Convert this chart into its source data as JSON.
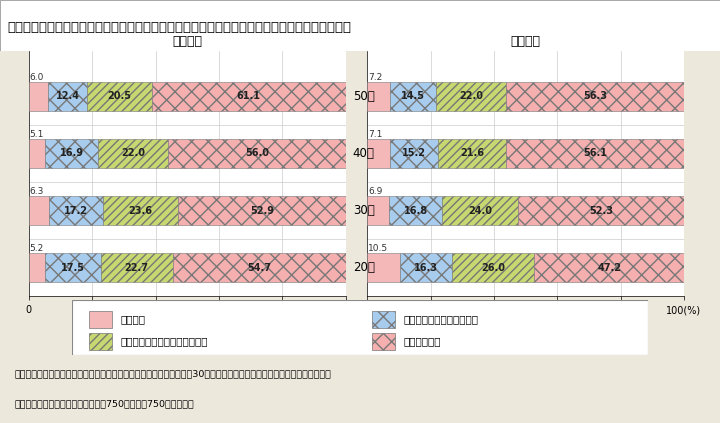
{
  "title": "Ｉ－３－６図　「夫は外で働き，妻は家庭を守るべきだ」という考え方に対する意識（男女別）",
  "female_label": "＜女性＞",
  "male_label": "＜男性＞",
  "age_groups": [
    "20代",
    "30代",
    "40代",
    "50代"
  ],
  "female_data": {
    "sou_omou": [
      5.2,
      6.3,
      5.1,
      6.0
    ],
    "dochira_sou": [
      17.5,
      17.2,
      16.9,
      12.4
    ],
    "dochira_omowanai": [
      22.7,
      23.6,
      22.0,
      20.5
    ],
    "sou_omowanai": [
      54.7,
      52.9,
      56.0,
      61.1
    ]
  },
  "male_data": {
    "sou_omou": [
      10.5,
      6.9,
      7.1,
      7.2
    ],
    "dochira_sou": [
      16.3,
      16.8,
      15.2,
      14.5
    ],
    "dochira_omowanai": [
      26.0,
      24.0,
      21.6,
      22.0
    ],
    "sou_omowanai": [
      47.2,
      52.3,
      56.1,
      56.3
    ]
  },
  "colors": {
    "sou_omou": "#F4A0A0",
    "dochira_sou": "#A0C8F0",
    "dochira_omowanai": "#C8D87A",
    "sou_omowanai": "#F4A0A0"
  },
  "legend_labels": [
    "そう思う",
    "どちらかというとそう思う",
    "どちらかというとそう思わない",
    "そう思わない"
  ],
  "bg_color": "#EDE8DC",
  "chart_bg": "#FFFFFF",
  "note_line1": "（備考）　１．「多様な選択を可能にする学びに関する調査」（平成30年度内閣府委託調査・株式会社創建）より作成。",
  "note_line2": "　　　　　２．各年代ともに，女性750人，男性750人が回答。"
}
